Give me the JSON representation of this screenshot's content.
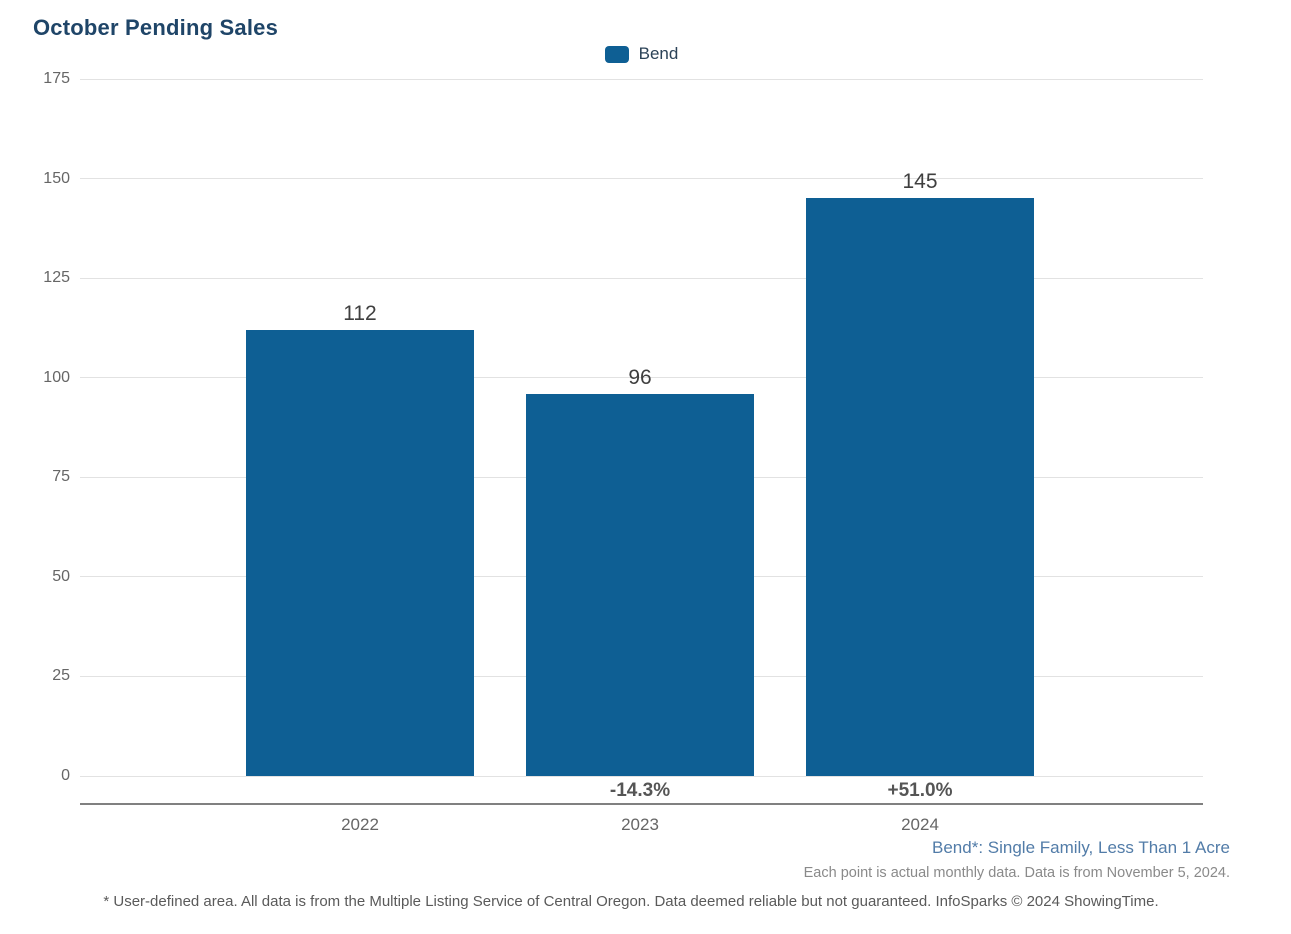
{
  "title": "October Pending Sales",
  "legend": {
    "items": [
      {
        "label": "Bend",
        "color": "#0E5F94"
      }
    ]
  },
  "chart_data": {
    "type": "bar",
    "title": "October Pending Sales",
    "categories": [
      "2022",
      "2023",
      "2024"
    ],
    "series": [
      {
        "name": "Bend",
        "values": [
          112,
          96,
          145
        ],
        "color": "#0E5F94"
      }
    ],
    "bar_value_labels": [
      "112",
      "96",
      "145"
    ],
    "pct_change_labels": [
      "",
      "-14.3%",
      "+51.0%"
    ],
    "xlabel": "",
    "ylabel": "",
    "ylim": [
      0,
      175
    ],
    "yticks": [
      0,
      25,
      50,
      75,
      100,
      125,
      150,
      175
    ],
    "grid": true,
    "legend_position": "top-center"
  },
  "notes": {
    "series_note": "Bend*: Single Family, Less Than 1 Acre",
    "data_note": "Each point is actual monthly data. Data is from November 5, 2024.",
    "footer": "* User-defined area. All data is from the Multiple Listing Service of Central Oregon. Data deemed reliable but not guaranteed. InfoSparks © 2024 ShowingTime."
  },
  "colors": {
    "bar": "#0E5F94",
    "title": "#1F4568",
    "legend_label": "#2B4257",
    "tick_label": "#666666",
    "gridline": "#E2E2E2",
    "axis_line": "#808080",
    "value_label": "#3F3F3F",
    "pct_label": "#555555",
    "series_note": "#527CA8",
    "data_note": "#8A8A8A",
    "footer": "#5A5A5A"
  }
}
